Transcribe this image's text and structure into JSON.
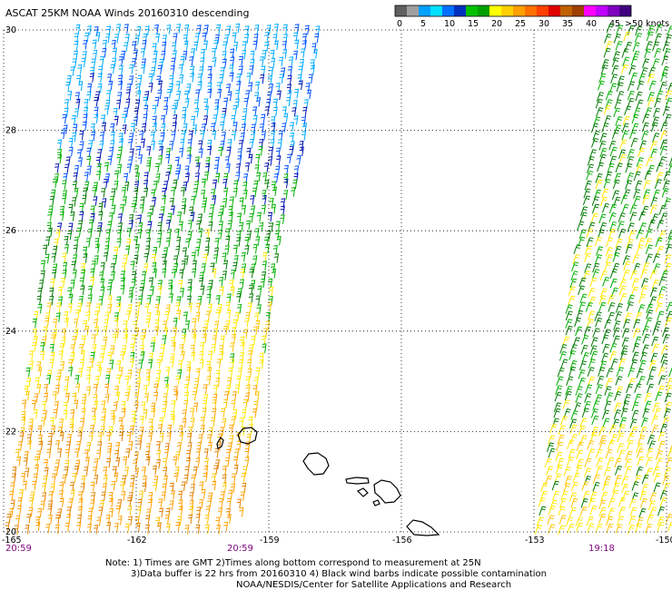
{
  "header": {
    "title": "ASCAT 25KM NOAA Winds 20160310 descending"
  },
  "legend": {
    "colors": [
      "#606060",
      "#a0a0a0",
      "#00a0ff",
      "#00e0ff",
      "#0070ff",
      "#0030c0",
      "#00c000",
      "#00a000",
      "#ffff00",
      "#ffd000",
      "#ffa000",
      "#ff7000",
      "#ff4000",
      "#e00000",
      "#c06000",
      "#a04000",
      "#ff00ff",
      "#c000ff",
      "#8000c0",
      "#400080"
    ],
    "labels": [
      "0",
      "5",
      "10",
      "15",
      "20",
      "25",
      "30",
      "35",
      "40",
      "45",
      ">50 knots"
    ]
  },
  "axes": {
    "lat_labels": [
      "30",
      "28",
      "26",
      "24",
      "22",
      "20"
    ],
    "lon_labels": [
      "-165",
      "-162",
      "-159",
      "-156",
      "-153",
      "-150"
    ]
  },
  "times": {
    "left": "20:59",
    "middle": "20:59",
    "right": "19:18"
  },
  "notes": {
    "line1": "Note: 1) Times are GMT 2)Times along bottom correspond to measurement at 25N",
    "line2": "3)Data buffer is 22 hrs from 20160310 4) Black wind barbs indicate possible contamination",
    "line3": "NOAA/NESDIS/Center for Satellite Applications and Research"
  },
  "wind_colors": {
    "blue_light": "#00aaff",
    "blue": "#0050ff",
    "navy": "#0010b0",
    "green": "#00b000",
    "dark_green": "#007a00",
    "yellow": "#ffe800",
    "gold": "#ffc400",
    "orange": "#ffa000",
    "dark_orange": "#e08000"
  }
}
